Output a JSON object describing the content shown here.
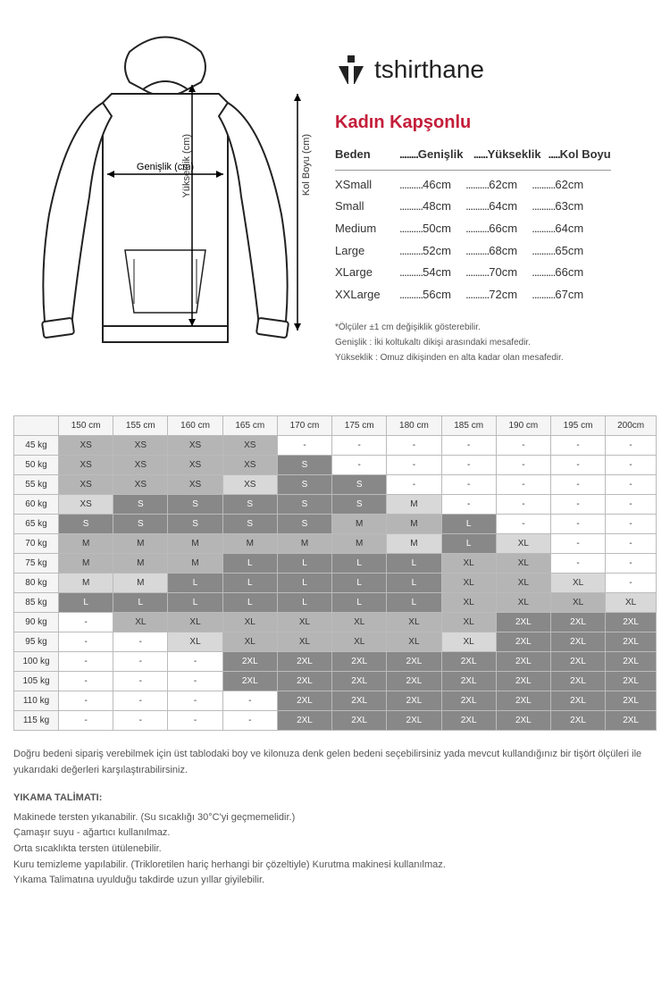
{
  "brand": "tshirthane",
  "diagram": {
    "width_label": "Genişlik (cm)",
    "height_label": "Yükseklik (cm)",
    "sleeve_label": "Kol Boyu (cm)"
  },
  "size_table": {
    "title": "Kadın Kapşonlu",
    "headers": [
      "Beden",
      "Genişlik",
      "Yükseklik",
      "Kol Boyu"
    ],
    "rows": [
      {
        "size": "XSmall",
        "w": "46cm",
        "h": "62cm",
        "s": "62cm"
      },
      {
        "size": "Small",
        "w": "48cm",
        "h": "64cm",
        "s": "63cm"
      },
      {
        "size": "Medium",
        "w": "50cm",
        "h": "66cm",
        "s": "64cm"
      },
      {
        "size": "Large",
        "w": "52cm",
        "h": "68cm",
        "s": "65cm"
      },
      {
        "size": "XLarge",
        "w": "54cm",
        "h": "70cm",
        "s": "66cm"
      },
      {
        "size": "XXLarge",
        "w": "56cm",
        "h": "72cm",
        "s": "67cm"
      }
    ],
    "footnotes": [
      "*Ölçüler ±1 cm değişiklik gösterebilir.",
      "Genişlik : İki koltukaltı dikişi arasındaki mesafedir.",
      "Yükseklik : Omuz dikişinden en alta kadar olan mesafedir."
    ]
  },
  "grid": {
    "col_headers": [
      "150 cm",
      "155 cm",
      "160 cm",
      "165 cm",
      "170 cm",
      "175 cm",
      "180 cm",
      "185 cm",
      "190 cm",
      "195 cm",
      "200cm"
    ],
    "row_headers": [
      "45 kg",
      "50 kg",
      "55 kg",
      "60 kg",
      "65 kg",
      "70 kg",
      "75 kg",
      "80 kg",
      "85 kg",
      "90 kg",
      "95 kg",
      "100 kg",
      "105 kg",
      "110 kg",
      "115 kg"
    ],
    "cells": [
      [
        [
          "XS",
          "m"
        ],
        [
          "XS",
          "m"
        ],
        [
          "XS",
          "m"
        ],
        [
          "XS",
          "m"
        ],
        [
          "-",
          ""
        ],
        [
          "-",
          ""
        ],
        [
          "-",
          ""
        ],
        [
          "-",
          ""
        ],
        [
          "-",
          ""
        ],
        [
          "-",
          ""
        ],
        [
          "-",
          ""
        ]
      ],
      [
        [
          "XS",
          "m"
        ],
        [
          "XS",
          "m"
        ],
        [
          "XS",
          "m"
        ],
        [
          "XS",
          "m"
        ],
        [
          "S",
          "d"
        ],
        [
          "-",
          ""
        ],
        [
          "-",
          ""
        ],
        [
          "-",
          ""
        ],
        [
          "-",
          ""
        ],
        [
          "-",
          ""
        ],
        [
          "-",
          ""
        ]
      ],
      [
        [
          "XS",
          "m"
        ],
        [
          "XS",
          "m"
        ],
        [
          "XS",
          "m"
        ],
        [
          "XS",
          "l"
        ],
        [
          "S",
          "d"
        ],
        [
          "S",
          "d"
        ],
        [
          "-",
          ""
        ],
        [
          "-",
          ""
        ],
        [
          "-",
          ""
        ],
        [
          "-",
          ""
        ],
        [
          "-",
          ""
        ]
      ],
      [
        [
          "XS",
          "l"
        ],
        [
          "S",
          "d"
        ],
        [
          "S",
          "d"
        ],
        [
          "S",
          "d"
        ],
        [
          "S",
          "d"
        ],
        [
          "S",
          "d"
        ],
        [
          "M",
          "l"
        ],
        [
          "-",
          ""
        ],
        [
          "-",
          ""
        ],
        [
          "-",
          ""
        ],
        [
          "-",
          ""
        ]
      ],
      [
        [
          "S",
          "d"
        ],
        [
          "S",
          "d"
        ],
        [
          "S",
          "d"
        ],
        [
          "S",
          "d"
        ],
        [
          "S",
          "d"
        ],
        [
          "M",
          "m"
        ],
        [
          "M",
          "m"
        ],
        [
          "L",
          "d"
        ],
        [
          "-",
          ""
        ],
        [
          "-",
          ""
        ],
        [
          "-",
          ""
        ]
      ],
      [
        [
          "M",
          "m"
        ],
        [
          "M",
          "m"
        ],
        [
          "M",
          "m"
        ],
        [
          "M",
          "m"
        ],
        [
          "M",
          "m"
        ],
        [
          "M",
          "m"
        ],
        [
          "M",
          "l"
        ],
        [
          "L",
          "d"
        ],
        [
          "XL",
          "l"
        ],
        [
          "-",
          ""
        ],
        [
          "-",
          ""
        ]
      ],
      [
        [
          "M",
          "m"
        ],
        [
          "M",
          "m"
        ],
        [
          "M",
          "m"
        ],
        [
          "L",
          "d"
        ],
        [
          "L",
          "d"
        ],
        [
          "L",
          "d"
        ],
        [
          "L",
          "d"
        ],
        [
          "XL",
          "m"
        ],
        [
          "XL",
          "m"
        ],
        [
          "-",
          ""
        ],
        [
          "-",
          ""
        ]
      ],
      [
        [
          "M",
          "l"
        ],
        [
          "M",
          "l"
        ],
        [
          "L",
          "d"
        ],
        [
          "L",
          "d"
        ],
        [
          "L",
          "d"
        ],
        [
          "L",
          "d"
        ],
        [
          "L",
          "d"
        ],
        [
          "XL",
          "m"
        ],
        [
          "XL",
          "m"
        ],
        [
          "XL",
          "l"
        ],
        [
          "-",
          ""
        ]
      ],
      [
        [
          "L",
          "d"
        ],
        [
          "L",
          "d"
        ],
        [
          "L",
          "d"
        ],
        [
          "L",
          "d"
        ],
        [
          "L",
          "d"
        ],
        [
          "L",
          "d"
        ],
        [
          "L",
          "d"
        ],
        [
          "XL",
          "m"
        ],
        [
          "XL",
          "m"
        ],
        [
          "XL",
          "m"
        ],
        [
          "XL",
          "l"
        ]
      ],
      [
        [
          "-",
          ""
        ],
        [
          "XL",
          "m"
        ],
        [
          "XL",
          "m"
        ],
        [
          "XL",
          "m"
        ],
        [
          "XL",
          "m"
        ],
        [
          "XL",
          "m"
        ],
        [
          "XL",
          "m"
        ],
        [
          "XL",
          "m"
        ],
        [
          "2XL",
          "d"
        ],
        [
          "2XL",
          "d"
        ],
        [
          "2XL",
          "d"
        ]
      ],
      [
        [
          "-",
          ""
        ],
        [
          "-",
          ""
        ],
        [
          "XL",
          "l"
        ],
        [
          "XL",
          "m"
        ],
        [
          "XL",
          "m"
        ],
        [
          "XL",
          "m"
        ],
        [
          "XL",
          "m"
        ],
        [
          "XL",
          "l"
        ],
        [
          "2XL",
          "d"
        ],
        [
          "2XL",
          "d"
        ],
        [
          "2XL",
          "d"
        ]
      ],
      [
        [
          "-",
          ""
        ],
        [
          "-",
          ""
        ],
        [
          "-",
          ""
        ],
        [
          "2XL",
          "d"
        ],
        [
          "2XL",
          "d"
        ],
        [
          "2XL",
          "d"
        ],
        [
          "2XL",
          "d"
        ],
        [
          "2XL",
          "d"
        ],
        [
          "2XL",
          "d"
        ],
        [
          "2XL",
          "d"
        ],
        [
          "2XL",
          "d"
        ]
      ],
      [
        [
          "-",
          ""
        ],
        [
          "-",
          ""
        ],
        [
          "-",
          ""
        ],
        [
          "2XL",
          "d"
        ],
        [
          "2XL",
          "d"
        ],
        [
          "2XL",
          "d"
        ],
        [
          "2XL",
          "d"
        ],
        [
          "2XL",
          "d"
        ],
        [
          "2XL",
          "d"
        ],
        [
          "2XL",
          "d"
        ],
        [
          "2XL",
          "d"
        ]
      ],
      [
        [
          "-",
          ""
        ],
        [
          "-",
          ""
        ],
        [
          "-",
          ""
        ],
        [
          "-",
          ""
        ],
        [
          "2XL",
          "d"
        ],
        [
          "2XL",
          "d"
        ],
        [
          "2XL",
          "d"
        ],
        [
          "2XL",
          "d"
        ],
        [
          "2XL",
          "d"
        ],
        [
          "2XL",
          "d"
        ],
        [
          "2XL",
          "d"
        ]
      ],
      [
        [
          "-",
          ""
        ],
        [
          "-",
          ""
        ],
        [
          "-",
          ""
        ],
        [
          "-",
          ""
        ],
        [
          "2XL",
          "d"
        ],
        [
          "2XL",
          "d"
        ],
        [
          "2XL",
          "d"
        ],
        [
          "2XL",
          "d"
        ],
        [
          "2XL",
          "d"
        ],
        [
          "2XL",
          "d"
        ],
        [
          "2XL",
          "d"
        ]
      ]
    ]
  },
  "bottom": {
    "intro": "Doğru bedeni sipariş verebilmek için üst tablodaki  boy ve kilonuza denk gelen bedeni seçebilirsiniz yada mevcut kullandığınız bir tişört ölçüleri ile yukarıdaki değerleri karşılaştırabilirsiniz.",
    "wash_title": "YIKAMA TALİMATI:",
    "wash_lines": [
      "Makinede tersten yıkanabilir. (Su sıcaklığı 30°C'yi geçmemelidir.)",
      "Çamaşır suyu - ağartıcı kullanılmaz.",
      "Orta sıcaklıkta tersten ütülenebilir.",
      "Kuru temizleme yapılabilir. (Trikloretilen hariç herhangi bir çözeltiyle) Kurutma makinesi kullanılmaz.",
      "Yıkama Talimatına uyulduğu takdirde uzun yıllar giyilebilir."
    ]
  }
}
